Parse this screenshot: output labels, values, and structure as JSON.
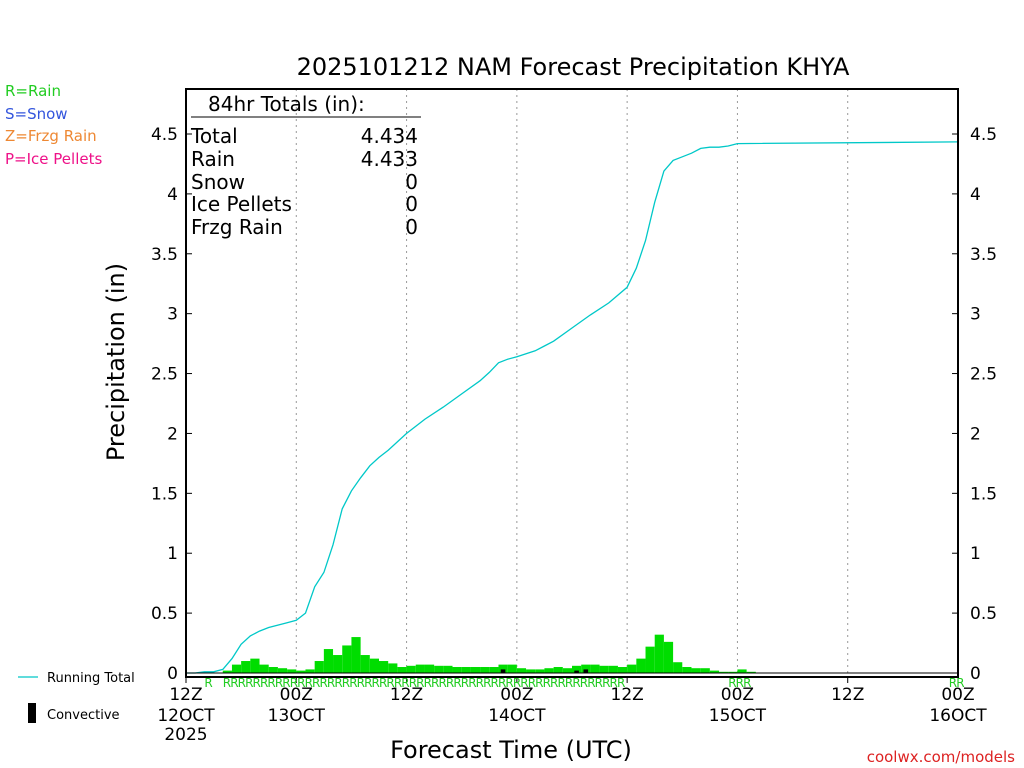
{
  "chart_data": {
    "type": "bar",
    "title": "2025101212 NAM Forecast Precipitation KHYA",
    "ylabel": "Precipitation (in)",
    "xlabel": "Forecast Time (UTC)",
    "ylim": [
      0,
      4.85
    ],
    "xlim_hours": [
      0,
      84
    ],
    "y_ticks": [
      "0",
      "0.5",
      "1",
      "1.5",
      "2",
      "2.5",
      "3",
      "3.5",
      "4",
      "4.5"
    ],
    "x_ticks": [
      {
        "hour": 0,
        "label": "12Z",
        "date": "12OCT",
        "year": "2025"
      },
      {
        "hour": 12,
        "label": "00Z",
        "date": "13OCT",
        "year": ""
      },
      {
        "hour": 24,
        "label": "12Z",
        "date": "",
        "year": ""
      },
      {
        "hour": 36,
        "label": "00Z",
        "date": "14OCT",
        "year": ""
      },
      {
        "hour": 48,
        "label": "12Z",
        "date": "",
        "year": ""
      },
      {
        "hour": 60,
        "label": "00Z",
        "date": "15OCT",
        "year": ""
      },
      {
        "hour": 72,
        "label": "12Z",
        "date": "",
        "year": ""
      },
      {
        "hour": 84,
        "label": "00Z",
        "date": "16OCT",
        "year": ""
      }
    ],
    "grid": true,
    "legend_position": "bottom-left",
    "totals": {
      "heading": "84hr Totals (in):",
      "rows": [
        {
          "label": "Total",
          "value": "4.434"
        },
        {
          "label": "Rain",
          "value": "4.433"
        },
        {
          "label": "Snow",
          "value": "0"
        },
        {
          "label": "Ice Pellets",
          "value": "0"
        },
        {
          "label": "Frzg Rain",
          "value": "0"
        }
      ]
    },
    "ptype_legend": [
      {
        "text": "R=Rain",
        "color": "#22cc22"
      },
      {
        "text": "S=Snow",
        "color": "#3355dd"
      },
      {
        "text": "Z=Frzg Rain",
        "color": "#ee8833"
      },
      {
        "text": "P=Ice Pellets",
        "color": "#ee1188"
      }
    ],
    "series_legend": [
      {
        "text": "Running Total",
        "color": "#00c8c8"
      },
      {
        "text": "Convective",
        "color": "#000000"
      }
    ],
    "credit": "coolwx.com/models",
    "hourly_precip": [
      0,
      0,
      0,
      0.003,
      0.02,
      0.07,
      0.1,
      0.12,
      0.07,
      0.05,
      0.04,
      0.03,
      0.02,
      0.03,
      0.1,
      0.2,
      0.15,
      0.23,
      0.3,
      0.15,
      0.12,
      0.1,
      0.08,
      0.05,
      0.06,
      0.07,
      0.07,
      0.06,
      0.06,
      0.05,
      0.05,
      0.05,
      0.05,
      0.05,
      0.07,
      0.07,
      0.04,
      0.03,
      0.03,
      0.04,
      0.05,
      0.04,
      0.06,
      0.07,
      0.07,
      0.06,
      0.06,
      0.05,
      0.07,
      0.12,
      0.22,
      0.32,
      0.26,
      0.09,
      0.05,
      0.04,
      0.04,
      0.02,
      0.01,
      0.01,
      0.03,
      0.01,
      0,
      0,
      0,
      0,
      0,
      0,
      0,
      0,
      0,
      0,
      0,
      0,
      0,
      0,
      0,
      0,
      0,
      0,
      0,
      0,
      0,
      0
    ],
    "convective_precip": [
      0,
      0,
      0,
      0,
      0,
      0,
      0,
      0,
      0,
      0,
      0,
      0,
      0,
      0,
      0,
      0,
      0,
      0,
      0,
      0,
      0,
      0,
      0,
      0,
      0,
      0,
      0,
      0,
      0,
      0,
      0,
      0,
      0,
      0,
      0.03,
      0,
      0,
      0,
      0,
      0,
      0,
      0,
      0.02,
      0.03,
      0,
      0,
      0,
      0,
      0,
      0,
      0,
      0,
      0,
      0,
      0,
      0,
      0,
      0,
      0,
      0,
      0,
      0,
      0,
      0,
      0,
      0,
      0,
      0,
      0,
      0,
      0,
      0,
      0,
      0,
      0,
      0,
      0,
      0,
      0,
      0,
      0,
      0,
      0,
      0
    ],
    "running_total": {
      "hours": [
        0,
        1,
        2,
        3,
        4,
        5,
        6,
        7,
        8,
        9,
        10,
        11,
        12,
        13,
        14,
        15,
        16,
        17,
        18,
        19,
        20,
        21,
        22,
        24,
        26,
        28,
        30,
        32,
        33,
        34,
        35,
        36,
        38,
        39,
        40,
        42,
        44,
        46,
        48,
        49,
        50,
        51,
        52,
        53,
        54,
        55,
        56,
        57,
        58,
        59,
        60,
        84
      ],
      "values": [
        0,
        0,
        0.01,
        0.01,
        0.03,
        0.12,
        0.24,
        0.31,
        0.35,
        0.38,
        0.4,
        0.42,
        0.44,
        0.5,
        0.72,
        0.84,
        1.07,
        1.37,
        1.52,
        1.63,
        1.73,
        1.8,
        1.86,
        2.0,
        2.12,
        2.22,
        2.33,
        2.44,
        2.51,
        2.59,
        2.62,
        2.64,
        2.69,
        2.73,
        2.77,
        2.88,
        2.99,
        3.09,
        3.22,
        3.38,
        3.61,
        3.93,
        4.19,
        4.28,
        4.31,
        4.34,
        4.38,
        4.39,
        4.39,
        4.4,
        4.42,
        4.434
      ]
    },
    "ptype_marks": [
      {
        "hour": 2,
        "text": "R"
      },
      {
        "hour": 4,
        "text": "RRRRRRRRRRRRRRRRRRRRRRRRRRRRRRRRRRRRRRRRRRRRRRRRRRRRRR"
      },
      {
        "hour": 59,
        "text": "RRR"
      },
      {
        "hour": 83,
        "text": "RR"
      }
    ]
  }
}
